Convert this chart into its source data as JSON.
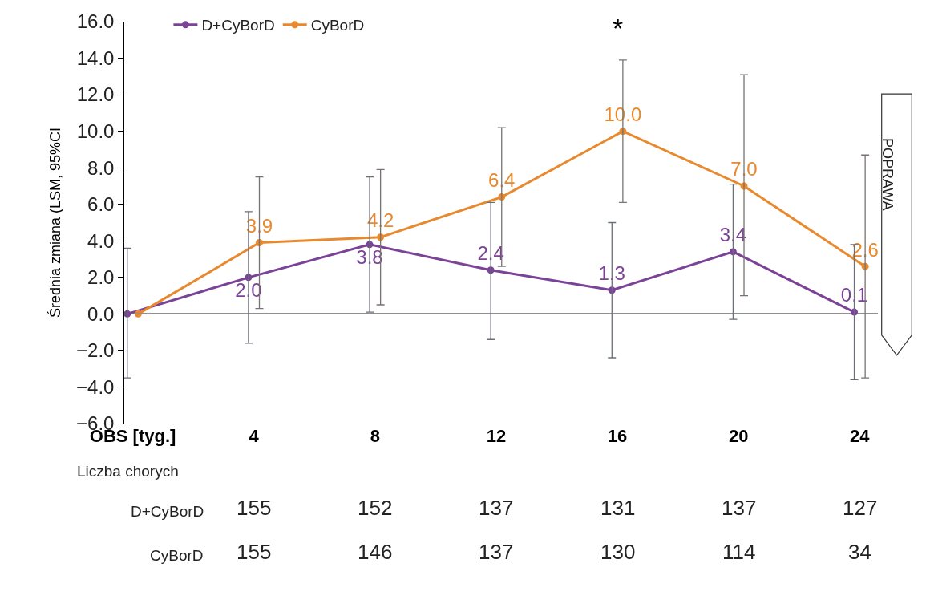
{
  "chart_data": {
    "type": "line",
    "ylabel": "Średnia zmiana (LSM, 95%CI",
    "categories": [
      "OBS [tyg.]",
      "4",
      "8",
      "12",
      "16",
      "20",
      "24"
    ],
    "series": [
      {
        "name": "D+CyBorD",
        "color": "#7b4397",
        "values": [
          0.0,
          2.0,
          3.8,
          2.4,
          1.3,
          3.4,
          0.1
        ],
        "value_labels": [
          null,
          "2.0",
          "3.8",
          "2.4",
          "1.3",
          "3.4",
          "0.1"
        ],
        "errors": [
          [
            -3.5,
            3.6
          ],
          [
            -1.6,
            5.6
          ],
          [
            0.1,
            7.5
          ],
          [
            -1.4,
            6.1
          ],
          [
            -2.4,
            5.0
          ],
          [
            -0.3,
            7.1
          ],
          [
            -3.6,
            3.8
          ]
        ]
      },
      {
        "name": "CyBorD",
        "color": "#e8892e",
        "values": [
          0.0,
          3.9,
          4.2,
          6.4,
          10.0,
          7.0,
          2.6
        ],
        "value_labels": [
          null,
          "3.9",
          "4.2",
          "6.4",
          "10.0",
          "7.0",
          "2.6"
        ],
        "errors": [
          null,
          [
            0.3,
            7.5
          ],
          [
            0.5,
            7.9
          ],
          [
            2.6,
            10.2
          ],
          [
            6.1,
            13.9
          ],
          [
            1.0,
            13.1
          ],
          [
            -3.5,
            8.7
          ]
        ]
      }
    ],
    "ylim": [
      -6,
      16
    ],
    "yticks": [
      {
        "value": -6,
        "label": "−6.0"
      },
      {
        "value": -4,
        "label": "−4.0"
      },
      {
        "value": -2,
        "label": "−2.0"
      },
      {
        "value": 0,
        "label": "0.0"
      },
      {
        "value": 2,
        "label": "2.0"
      },
      {
        "value": 4,
        "label": "4.0"
      },
      {
        "value": 6,
        "label": "6.0"
      },
      {
        "value": 8,
        "label": "8.0"
      },
      {
        "value": 10,
        "label": "10.0"
      },
      {
        "value": 12,
        "label": "12.0"
      },
      {
        "value": 14,
        "label": "14.0"
      },
      {
        "value": 16,
        "label": "16.0"
      }
    ],
    "annotations": [
      "*",
      "POPRAWA",
      "Liczba chorych",
      "D+CyBorD",
      "155",
      "152",
      "137",
      "131",
      "137",
      "127",
      "CyBorD",
      "155",
      "146",
      "137",
      "130",
      "114",
      "34"
    ],
    "ref_lines": [
      {
        "axis": "y",
        "value": 0,
        "color": "#222222"
      }
    ],
    "marker": "circle",
    "line_style": "solid",
    "grid": false,
    "legend": "top left"
  }
}
